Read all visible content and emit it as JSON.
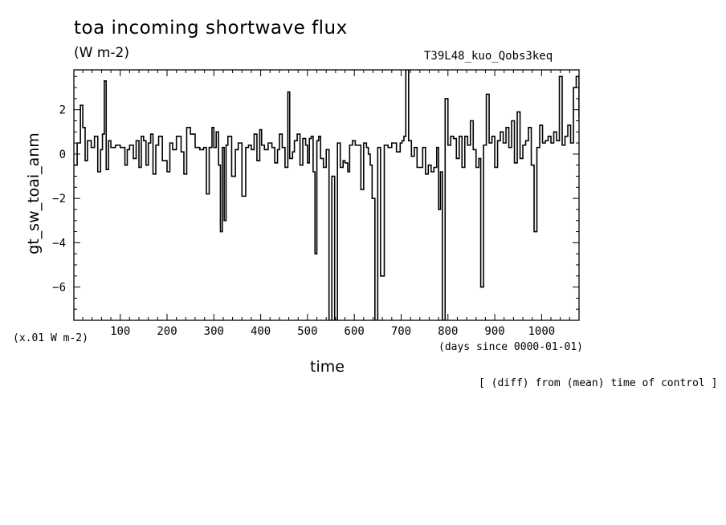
{
  "chart_data": {
    "type": "line",
    "title": "toa incoming shortwave flux",
    "units": "(W m-2)",
    "run_label": "T39L48_kuo_Qobs3keq",
    "ylabel": "gt_sw_toai_anm",
    "yaxis_units": "(x.01 W m-2)",
    "xlabel": "time",
    "xaxis_units": "(days since 0000-01-01)",
    "note": "[ (diff) from (mean) time of control ]",
    "xlim": [
      1,
      1080
    ],
    "ylim": [
      -7.5,
      3.8
    ],
    "x_ticks": [
      100,
      200,
      300,
      400,
      500,
      600,
      700,
      800,
      900,
      1000
    ],
    "y_ticks": [
      2,
      0,
      -2,
      -4,
      -6
    ],
    "step": "post",
    "series": [
      {
        "x": [
          1,
          8,
          15,
          20,
          25,
          30,
          38,
          45,
          52,
          58,
          62,
          66,
          70,
          75,
          80,
          90,
          100,
          110,
          115,
          120,
          128,
          134,
          140,
          145,
          150,
          155,
          160,
          165,
          170,
          176,
          182,
          190,
          200,
          206,
          212,
          220,
          230,
          236,
          242,
          250,
          260,
          270,
          278,
          284,
          290,
          296,
          300,
          305,
          310,
          314,
          318,
          322,
          326,
          330,
          338,
          346,
          352,
          360,
          368,
          374,
          380,
          386,
          392,
          398,
          402,
          408,
          416,
          424,
          430,
          436,
          440,
          446,
          452,
          458,
          462,
          468,
          472,
          478,
          484,
          490,
          496,
          500,
          504,
          508,
          512,
          516,
          520,
          524,
          528,
          534,
          540,
          546,
          552,
          558,
          564,
          570,
          576,
          580,
          586,
          590,
          596,
          602,
          608,
          614,
          620,
          626,
          630,
          634,
          638,
          644,
          650,
          656,
          664,
          672,
          680,
          690,
          698,
          702,
          706,
          710,
          716,
          722,
          728,
          734,
          740,
          746,
          752,
          758,
          764,
          770,
          776,
          780,
          784,
          788,
          794,
          800,
          806,
          812,
          818,
          824,
          830,
          836,
          842,
          848,
          854,
          860,
          866,
          870,
          876,
          882,
          888,
          894,
          900,
          906,
          912,
          918,
          924,
          930,
          936,
          942,
          948,
          954,
          960,
          966,
          972,
          978,
          984,
          990,
          996,
          1002,
          1008,
          1014,
          1020,
          1026,
          1032,
          1038,
          1044,
          1050,
          1056,
          1062,
          1068,
          1074,
          1080
        ],
        "y": [
          -0.5,
          0.5,
          2.2,
          1.2,
          -0.3,
          0.6,
          0.3,
          0.8,
          -0.8,
          0.2,
          0.9,
          3.3,
          -0.7,
          0.6,
          0.3,
          0.4,
          0.3,
          -0.5,
          0.2,
          0.4,
          -0.2,
          0.6,
          -0.6,
          0.8,
          0.6,
          -0.5,
          0.5,
          0.9,
          -0.9,
          0.4,
          0.8,
          -0.3,
          -0.8,
          0.5,
          0.2,
          0.8,
          0.1,
          -0.9,
          1.2,
          0.9,
          0.3,
          0.2,
          0.3,
          -1.8,
          0.3,
          1.2,
          0.3,
          1.0,
          -0.5,
          -3.5,
          0.3,
          -3.0,
          0.4,
          0.8,
          -1.0,
          0.2,
          0.5,
          -1.9,
          0.3,
          0.4,
          0.2,
          0.9,
          -0.3,
          1.1,
          0.4,
          0.2,
          0.5,
          0.3,
          -0.4,
          0.2,
          0.9,
          0.3,
          -0.6,
          2.8,
          -0.2,
          0.1,
          0.6,
          0.9,
          -0.5,
          0.7,
          0.4,
          -0.4,
          0.7,
          0.8,
          -0.8,
          -4.5,
          0.6,
          0.8,
          -0.2,
          -0.6,
          0.2,
          -7.5,
          -1.0,
          -7.5,
          0.5,
          -0.6,
          -0.3,
          -0.4,
          -0.8,
          0.4,
          0.6,
          0.4,
          0.4,
          -1.6,
          0.5,
          0.3,
          0.0,
          -0.5,
          -2.0,
          -7.5,
          0.3,
          -5.5,
          0.4,
          0.3,
          0.5,
          0.1,
          0.5,
          0.6,
          0.8,
          3.8,
          0.6,
          -0.1,
          0.3,
          -0.6,
          -0.6,
          0.3,
          -0.9,
          -0.5,
          -0.8,
          -0.6,
          0.3,
          -2.5,
          -0.8,
          -7.5,
          2.5,
          0.4,
          0.8,
          0.7,
          -0.2,
          0.8,
          -0.6,
          0.8,
          0.4,
          1.5,
          0.2,
          -0.6,
          -0.2,
          -6.0,
          0.4,
          2.7,
          0.5,
          0.8,
          -0.6,
          0.6,
          1.0,
          0.5,
          1.2,
          0.3,
          1.5,
          -0.4,
          1.9,
          -0.2,
          0.4,
          0.6,
          1.2,
          -0.5,
          -3.5,
          0.3,
          1.3,
          0.5,
          0.6,
          0.8,
          0.5,
          1.0,
          0.6,
          3.5,
          0.4,
          0.8,
          1.3,
          0.5,
          3.0,
          3.5,
          1.6
        ]
      }
    ]
  }
}
